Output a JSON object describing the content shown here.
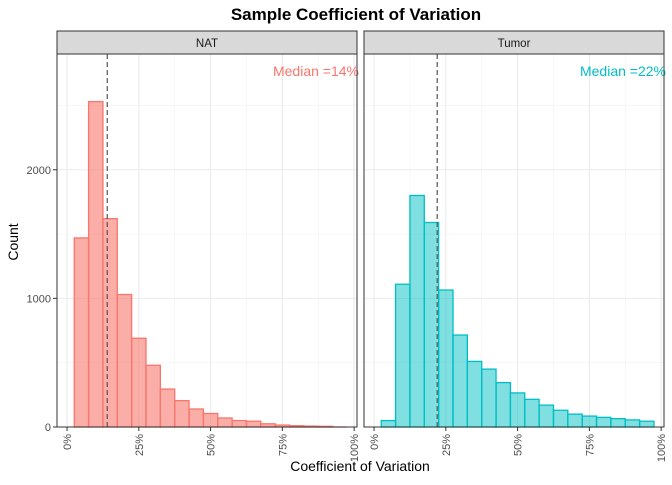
{
  "chart_data": {
    "type": "bar",
    "title": "Sample Coefficient of Variation",
    "xlabel": "Coefficient of Variation",
    "ylabel": "Count",
    "x_ticks": [
      "0%",
      "25%",
      "50%",
      "75%",
      "100%"
    ],
    "x_tick_values": [
      0,
      25,
      50,
      75,
      100
    ],
    "y_ticks": [
      "0",
      "1000",
      "2000"
    ],
    "y_tick_values": [
      0,
      1000,
      2000
    ],
    "xlim": [
      -3.5,
      101
    ],
    "ylim": [
      0,
      2900
    ],
    "grid": true,
    "legend": "none",
    "bin_width": 5,
    "bin_starts": [
      2.5,
      7.5,
      12.5,
      17.5,
      22.5,
      27.5,
      32.5,
      37.5,
      42.5,
      47.5,
      52.5,
      57.5,
      62.5,
      67.5,
      72.5,
      77.5,
      82.5,
      87.5,
      92.5
    ],
    "panels": [
      {
        "strip": "NAT",
        "color": "#F8766D",
        "fill": "rgba(248,118,109,0.6)",
        "median_value": 14,
        "median_label": "Median =14%",
        "values": [
          1470,
          2530,
          1620,
          1030,
          690,
          480,
          295,
          205,
          140,
          105,
          70,
          50,
          45,
          25,
          15,
          10,
          7,
          5,
          0
        ]
      },
      {
        "strip": "Tumor",
        "color": "#00BFC4",
        "fill": "rgba(0,191,196,0.5)",
        "median_value": 22,
        "median_label": "Median =22%",
        "values": [
          50,
          1110,
          1800,
          1590,
          1065,
          715,
          510,
          450,
          345,
          265,
          215,
          170,
          130,
          100,
          85,
          75,
          65,
          55,
          45
        ]
      }
    ]
  }
}
